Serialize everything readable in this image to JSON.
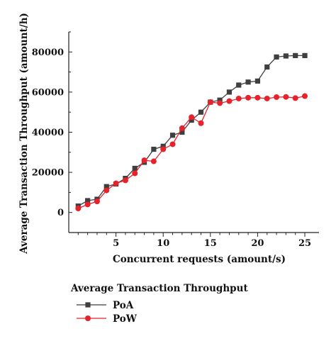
{
  "chart_data": {
    "type": "line",
    "xlabel": "Concurrent requests (amount/s)",
    "ylabel": "Average Transaction Throughput (amount/h)",
    "xlim": [
      0,
      26.5
    ],
    "ylim": [
      -10000,
      90000
    ],
    "xticks": [
      5,
      10,
      15,
      20,
      25
    ],
    "yticks": [
      0,
      20000,
      40000,
      60000,
      80000
    ],
    "legend_title": "Average Transaction Throughput",
    "legend_position": "bottom-left",
    "grid": false,
    "x": [
      1,
      2,
      3,
      4,
      5,
      6,
      7,
      8,
      9,
      10,
      11,
      12,
      13,
      14,
      15,
      16,
      17,
      18,
      19,
      20,
      21,
      22,
      23,
      24,
      25
    ],
    "series": [
      {
        "name": "PoA",
        "color": "#3f3f3f",
        "marker": "square",
        "values": [
          3200,
          5900,
          6600,
          12900,
          14200,
          17000,
          22000,
          25000,
          31500,
          33000,
          38500,
          40000,
          46000,
          50000,
          55000,
          56000,
          60000,
          63500,
          65000,
          65500,
          72500,
          77500,
          78000,
          78200,
          78200
        ]
      },
      {
        "name": "PoW",
        "color": "#e8222b",
        "marker": "circle",
        "values": [
          2000,
          4000,
          5500,
          11000,
          14500,
          16000,
          19500,
          26000,
          25500,
          31500,
          34000,
          42000,
          47500,
          44500,
          55000,
          54500,
          55500,
          56800,
          57200,
          57200,
          56800,
          57500,
          57600,
          57000,
          58000
        ]
      }
    ]
  }
}
